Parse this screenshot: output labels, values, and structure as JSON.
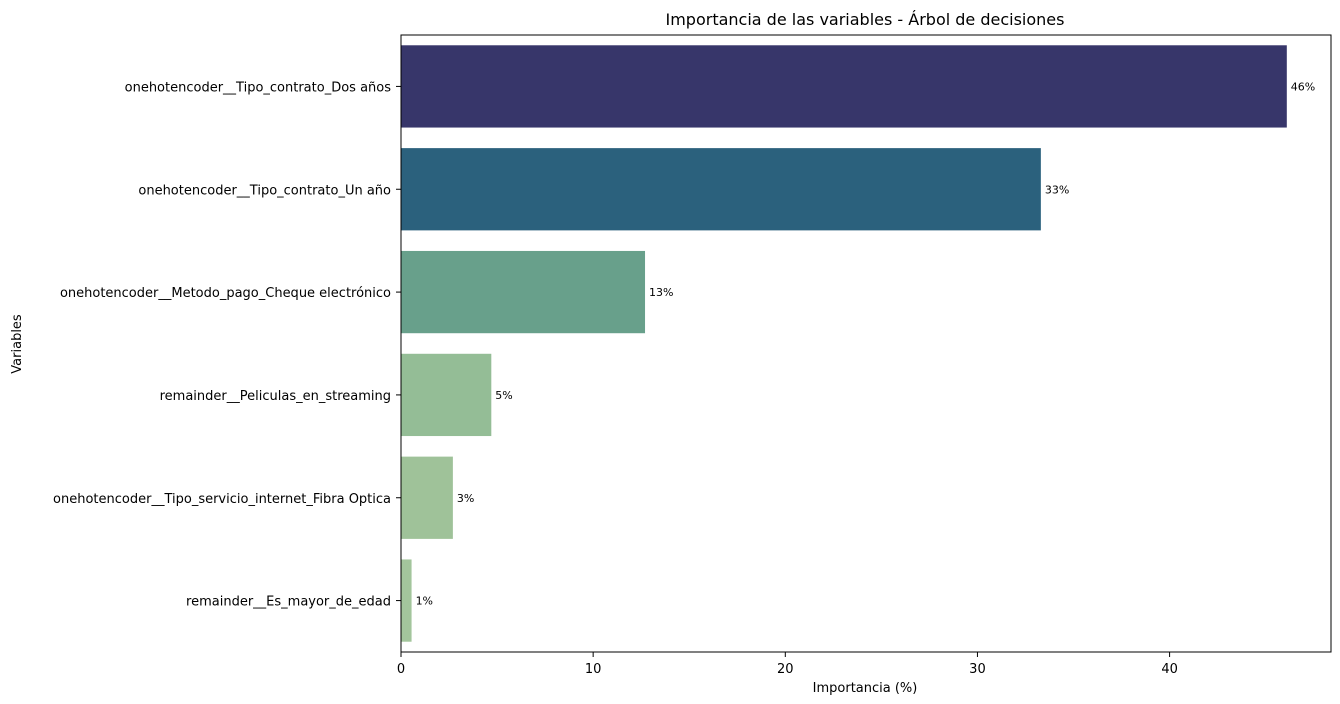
{
  "chart_data": {
    "type": "bar",
    "orientation": "horizontal",
    "title": "Importancia de las variables - Árbol de decisiones",
    "xlabel": "Importancia (%)",
    "ylabel": "Variables",
    "xlim": [
      0,
      48.4
    ],
    "xticks": [
      0,
      10,
      20,
      30,
      40
    ],
    "grid": false,
    "legend": "none",
    "categories": [
      "onehotencoder__Tipo_contrato_Dos años",
      "onehotencoder__Tipo_contrato_Un año",
      "onehotencoder__Metodo_pago_Cheque electrónico",
      "remainder__Peliculas_en_streaming",
      "onehotencoder__Tipo_servicio_internet_Fibra Optica",
      "remainder__Es_mayor_de_edad"
    ],
    "values": [
      46.1,
      33.3,
      12.7,
      4.7,
      2.7,
      0.55
    ],
    "data_labels": [
      "46%",
      "33%",
      "13%",
      "5%",
      "3%",
      "1%"
    ],
    "colors": [
      "#37366a",
      "#2b617d",
      "#68a08b",
      "#94bd96",
      "#9fc299",
      "#a3c59c"
    ]
  }
}
